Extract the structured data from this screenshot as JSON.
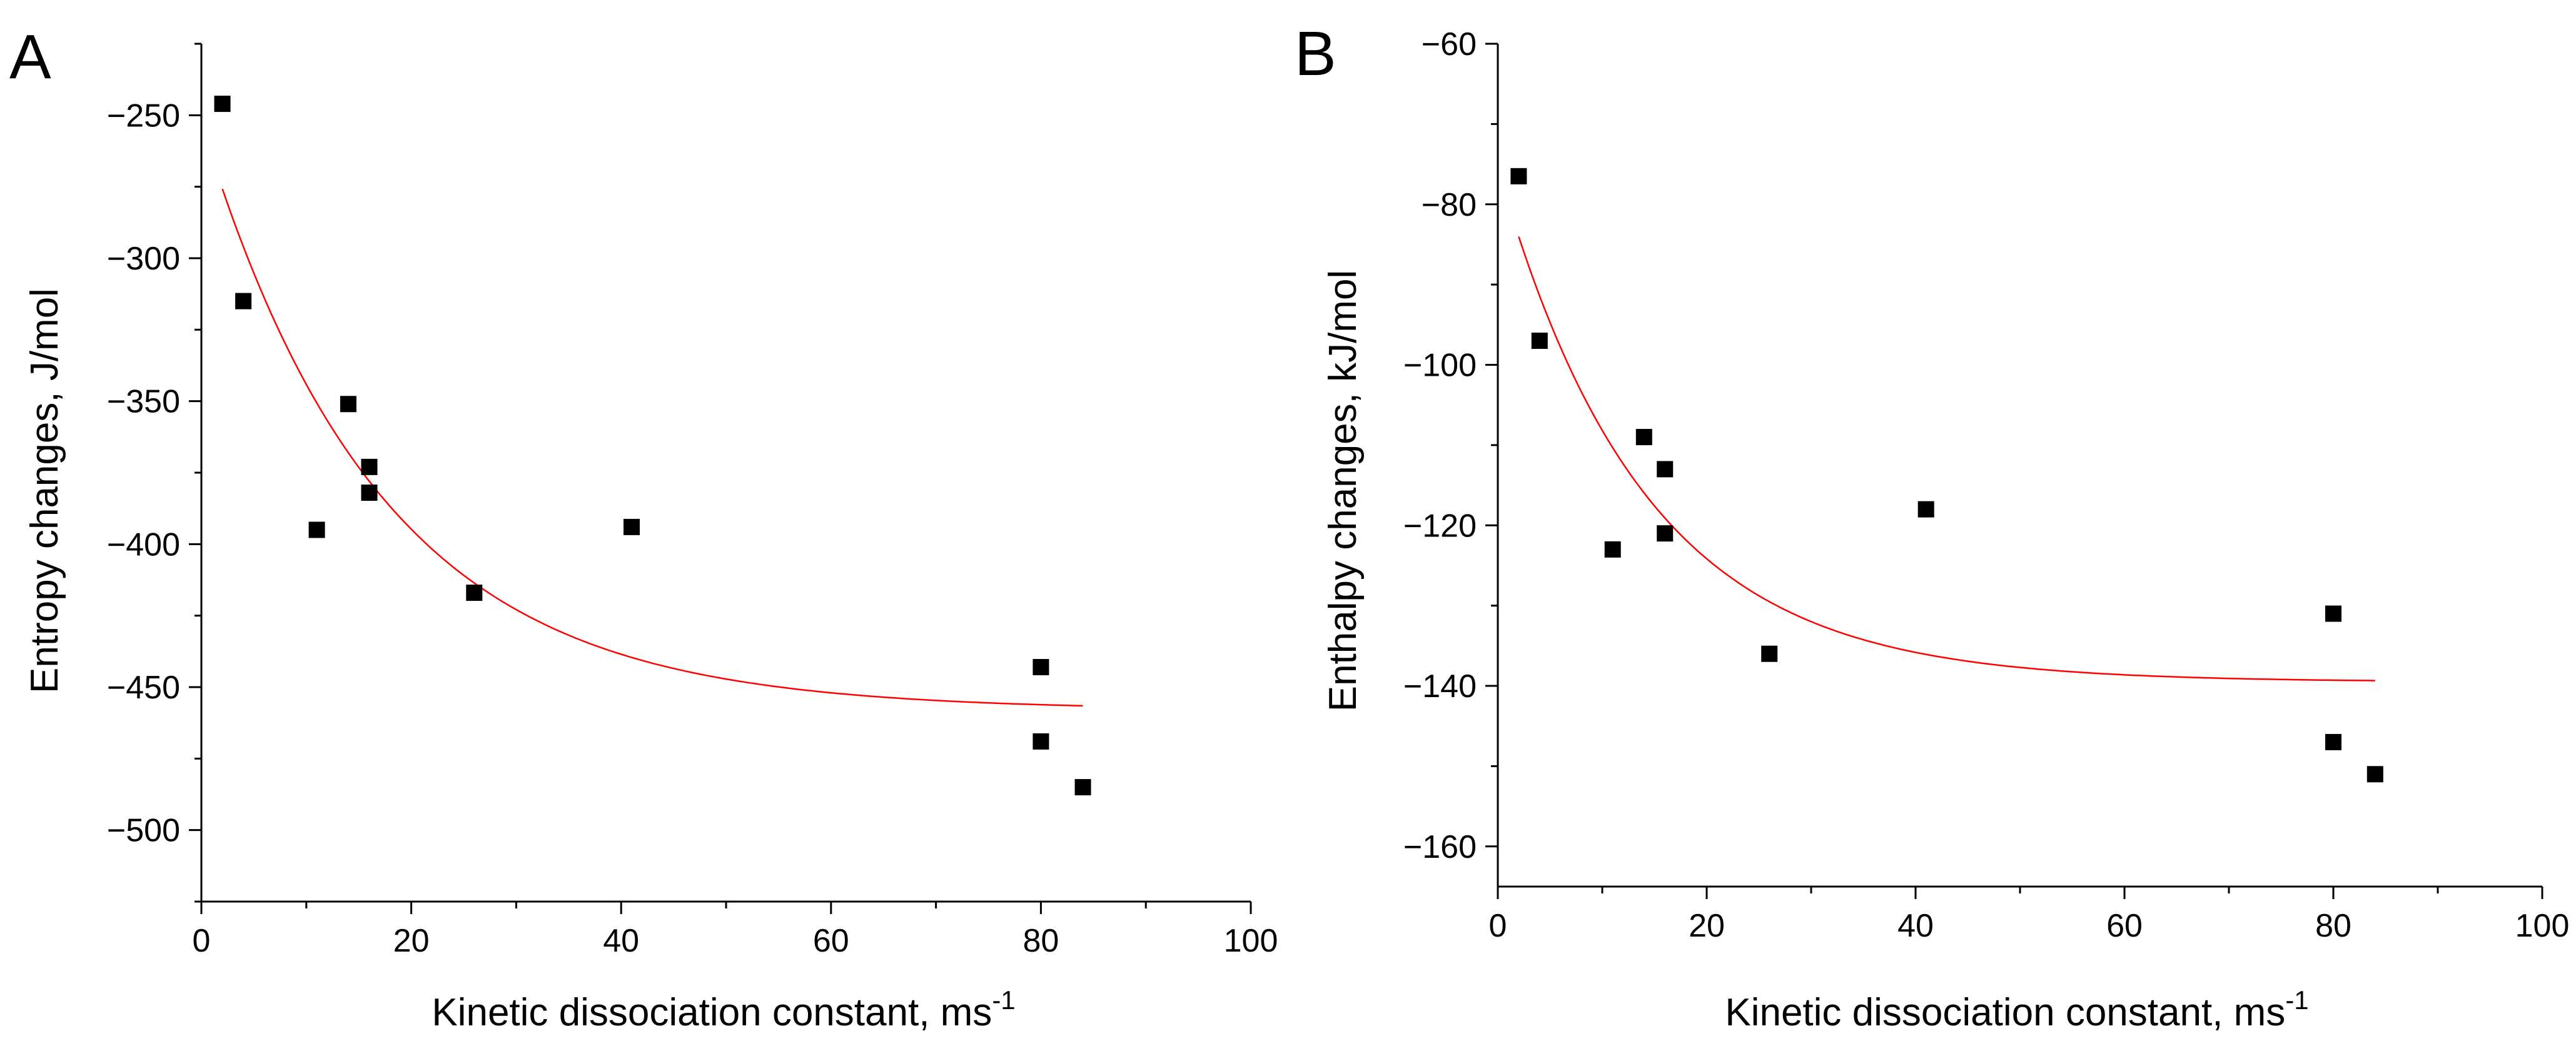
{
  "figure_labels": [
    "A",
    "B"
  ],
  "colors": {
    "points": "#000000",
    "fit": "#ff0000",
    "axis": "#000000",
    "background": "#ffffff"
  },
  "chart_data": [
    {
      "type": "scatter",
      "panel": "A",
      "title": "",
      "xlabel": "Kinetic dissociation constant, ms",
      "xlabel_sup": "-1",
      "ylabel": "Entropy changes, J/mol",
      "xlim": [
        0,
        100
      ],
      "ylim": [
        -525,
        -225
      ],
      "xticks": [
        0,
        20,
        40,
        60,
        80,
        100
      ],
      "xtick_labels": [
        "0",
        "20",
        "40",
        "60",
        "80",
        "100"
      ],
      "yticks": [
        -500,
        -450,
        -400,
        -350,
        -300,
        -250
      ],
      "ytick_labels": [
        "−500",
        "−450",
        "−400",
        "−350",
        "−300",
        "−250"
      ],
      "grid": false,
      "series": [
        {
          "name": "data",
          "marker": "square",
          "x": [
            2,
            4,
            11,
            14,
            16,
            16,
            26,
            41,
            80,
            80,
            84
          ],
          "y": [
            -246,
            -315,
            -395,
            -351,
            -373,
            -382,
            -417,
            -394,
            -443,
            -469,
            -485
          ]
        }
      ],
      "fit": {
        "name": "exponential fit",
        "function": "y0 + A*exp(-x/t)",
        "y0": -458,
        "A": 205,
        "t": 17,
        "x_range": [
          2,
          84
        ]
      }
    },
    {
      "type": "scatter",
      "panel": "B",
      "title": "",
      "xlabel": "Kinetic dissociation constant, ms",
      "xlabel_sup": "-1",
      "ylabel": "Enthalpy changes, kJ/mol",
      "xlim": [
        0,
        100
      ],
      "ylim": [
        -165,
        -60
      ],
      "xticks": [
        0,
        20,
        40,
        60,
        80,
        100
      ],
      "xtick_labels": [
        "0",
        "20",
        "40",
        "60",
        "80",
        "100"
      ],
      "yticks": [
        -160,
        -140,
        -120,
        -100,
        -80,
        -60
      ],
      "ytick_labels": [
        "−160",
        "−140",
        "−120",
        "−100",
        "−80",
        "−60"
      ],
      "grid": false,
      "series": [
        {
          "name": "data",
          "marker": "square",
          "x": [
            2,
            4,
            11,
            14,
            16,
            16,
            26,
            41,
            80,
            80,
            84
          ],
          "y": [
            -76.5,
            -97,
            -123,
            -109,
            -113,
            -121,
            -136,
            -118,
            -131,
            -147,
            -151
          ]
        }
      ],
      "fit": {
        "name": "exponential fit",
        "function": "y0 + A*exp(-x/t)",
        "y0": -139.5,
        "A": 64,
        "t": 14,
        "x_range": [
          2,
          84
        ]
      }
    }
  ]
}
